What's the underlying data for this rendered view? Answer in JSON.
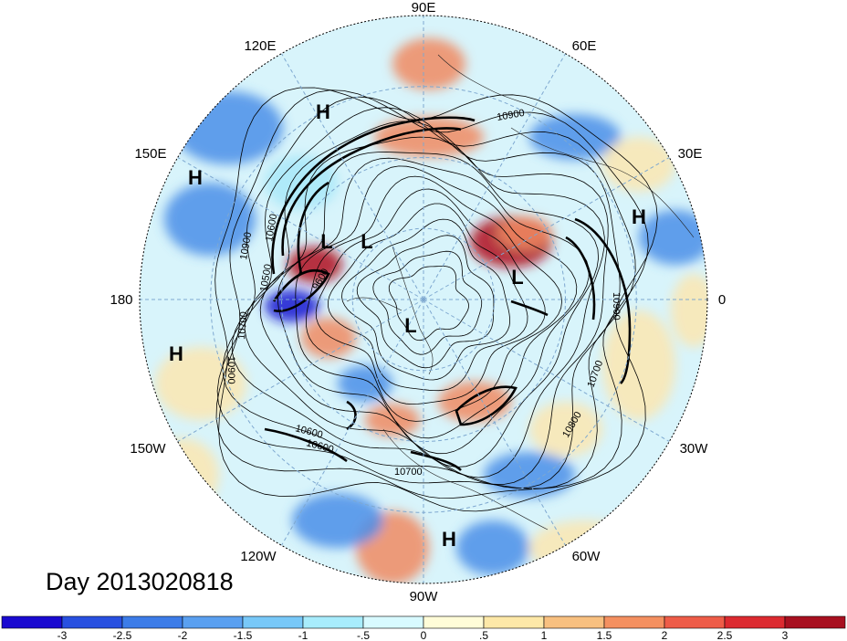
{
  "map": {
    "projection": "north polar stereographic",
    "longitude_labels": [
      "90E",
      "120E",
      "60E",
      "150E",
      "30E",
      "180",
      "0",
      "150W",
      "30W",
      "120W",
      "60W",
      "90W"
    ],
    "pressure_systems": [
      "H",
      "H",
      "H",
      "H",
      "H",
      "L",
      "L",
      "L",
      "L"
    ],
    "contour_labels": [
      "10900",
      "10600",
      "10500",
      "10900",
      "9600",
      "10900",
      "10700",
      "10900",
      "10800",
      "10700",
      "10600",
      "10700",
      "10600"
    ],
    "shading_palette": {
      "strong_negative": "#1a1ad0",
      "negative": "#4a8ee8",
      "weak_negative": "#a8e8f8",
      "neutral": "#ffffff",
      "weak_positive": "#fbe6b0",
      "positive": "#f08a60",
      "strong_positive": "#b01020"
    },
    "gridline_color": "#7ea8d0",
    "contour_color": "#000000",
    "coastline_color": "#000000"
  },
  "timestamp": "Day 2013020818",
  "colorbar": {
    "tick_labels": [
      "-3",
      "-2.5",
      "-2",
      "-1.5",
      "-1",
      "-.5",
      "0",
      ".5",
      "1",
      "1.5",
      "2",
      "2.5",
      "3"
    ],
    "colors": [
      "#1a0ad0",
      "#2850e0",
      "#3c7ce8",
      "#5aa0f0",
      "#78c8f8",
      "#a8ecfc",
      "#d8faff",
      "#fffcd8",
      "#fde8a8",
      "#f8c080",
      "#f49060",
      "#ee5c48",
      "#dc2a30",
      "#a81020"
    ]
  }
}
